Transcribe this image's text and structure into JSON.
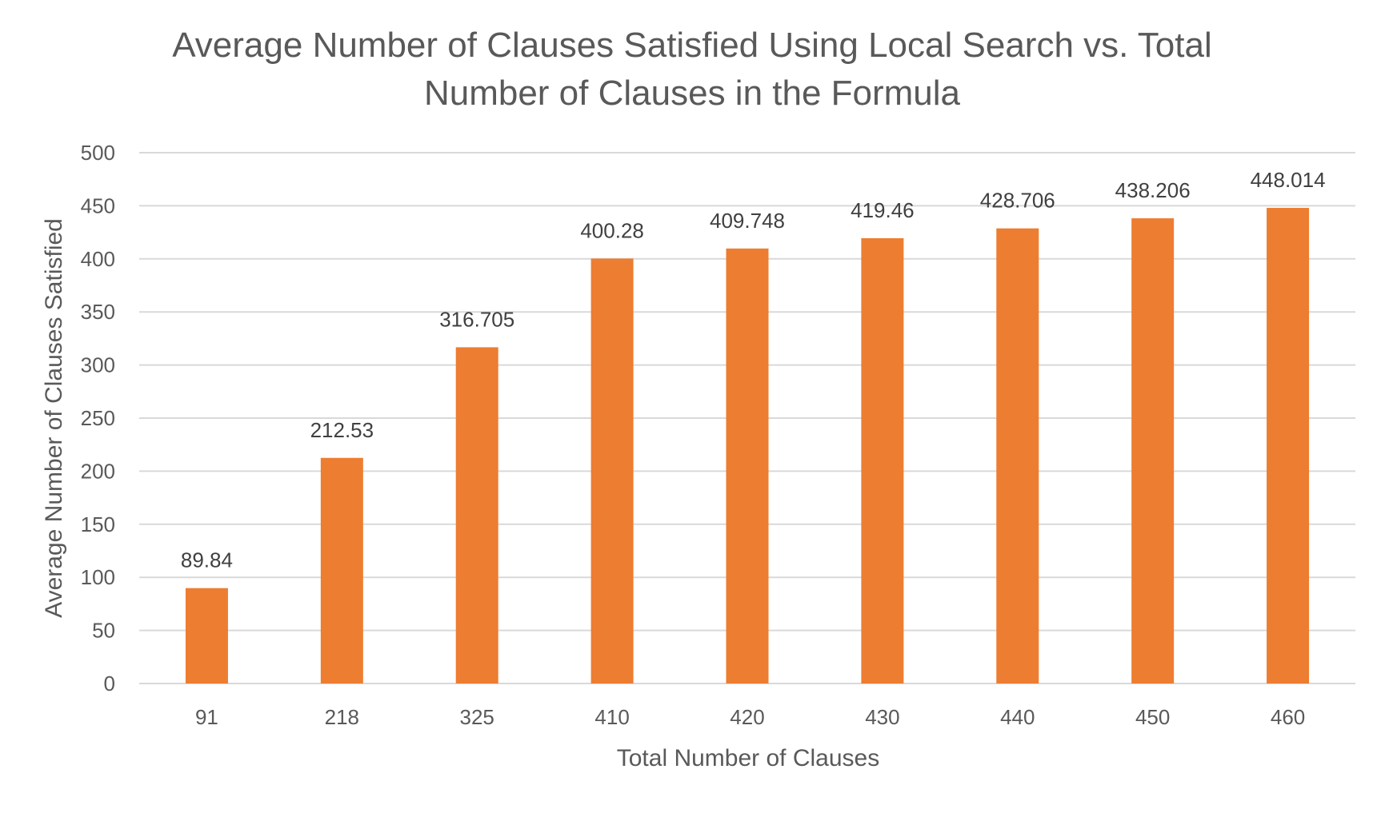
{
  "chart_data": {
    "type": "bar",
    "title_lines": [
      "Average Number of Clauses Satisfied Using Local Search vs. Total",
      "Number of Clauses in the Formula"
    ],
    "xlabel": "Total Number of Clauses",
    "ylabel": "Average Number of Clauses Satisfied",
    "categories": [
      "91",
      "218",
      "325",
      "410",
      "420",
      "430",
      "440",
      "450",
      "460"
    ],
    "values": [
      89.84,
      212.53,
      316.705,
      400.28,
      409.748,
      419.46,
      428.706,
      438.206,
      448.014
    ],
    "data_labels": [
      "89.84",
      "212.53",
      "316.705",
      "400.28",
      "409.748",
      "419.46",
      "428.706",
      "438.206",
      "448.014"
    ],
    "y_ticks": [
      "0",
      "50",
      "100",
      "150",
      "200",
      "250",
      "300",
      "350",
      "400",
      "450",
      "500"
    ],
    "ylim": [
      0,
      500
    ],
    "grid": true,
    "legend": "none",
    "bar_color": "#ED7D31"
  }
}
